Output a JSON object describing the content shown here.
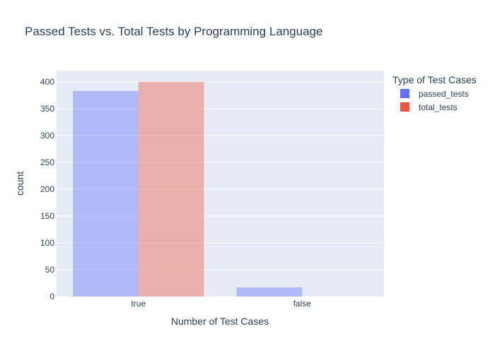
{
  "chart_data": {
    "type": "bar",
    "title": "Passed Tests vs. Total Tests by Programming Language",
    "xlabel": "Number of Test Cases",
    "ylabel": "count",
    "categories": [
      "true",
      "false"
    ],
    "series": [
      {
        "name": "passed_tests",
        "values": [
          383,
          17
        ],
        "color": "#636efa"
      },
      {
        "name": "total_tests",
        "values": [
          400,
          0
        ],
        "color": "#ef553b"
      }
    ],
    "ylim": [
      0,
      421
    ],
    "yticks": [
      0,
      50,
      100,
      150,
      200,
      250,
      300,
      350,
      400
    ],
    "grid": true,
    "legend": {
      "title": "Type of Test Cases",
      "placement": "top-right"
    },
    "plot_background": "#e5ecf6",
    "bar_opacity": 0.4
  }
}
